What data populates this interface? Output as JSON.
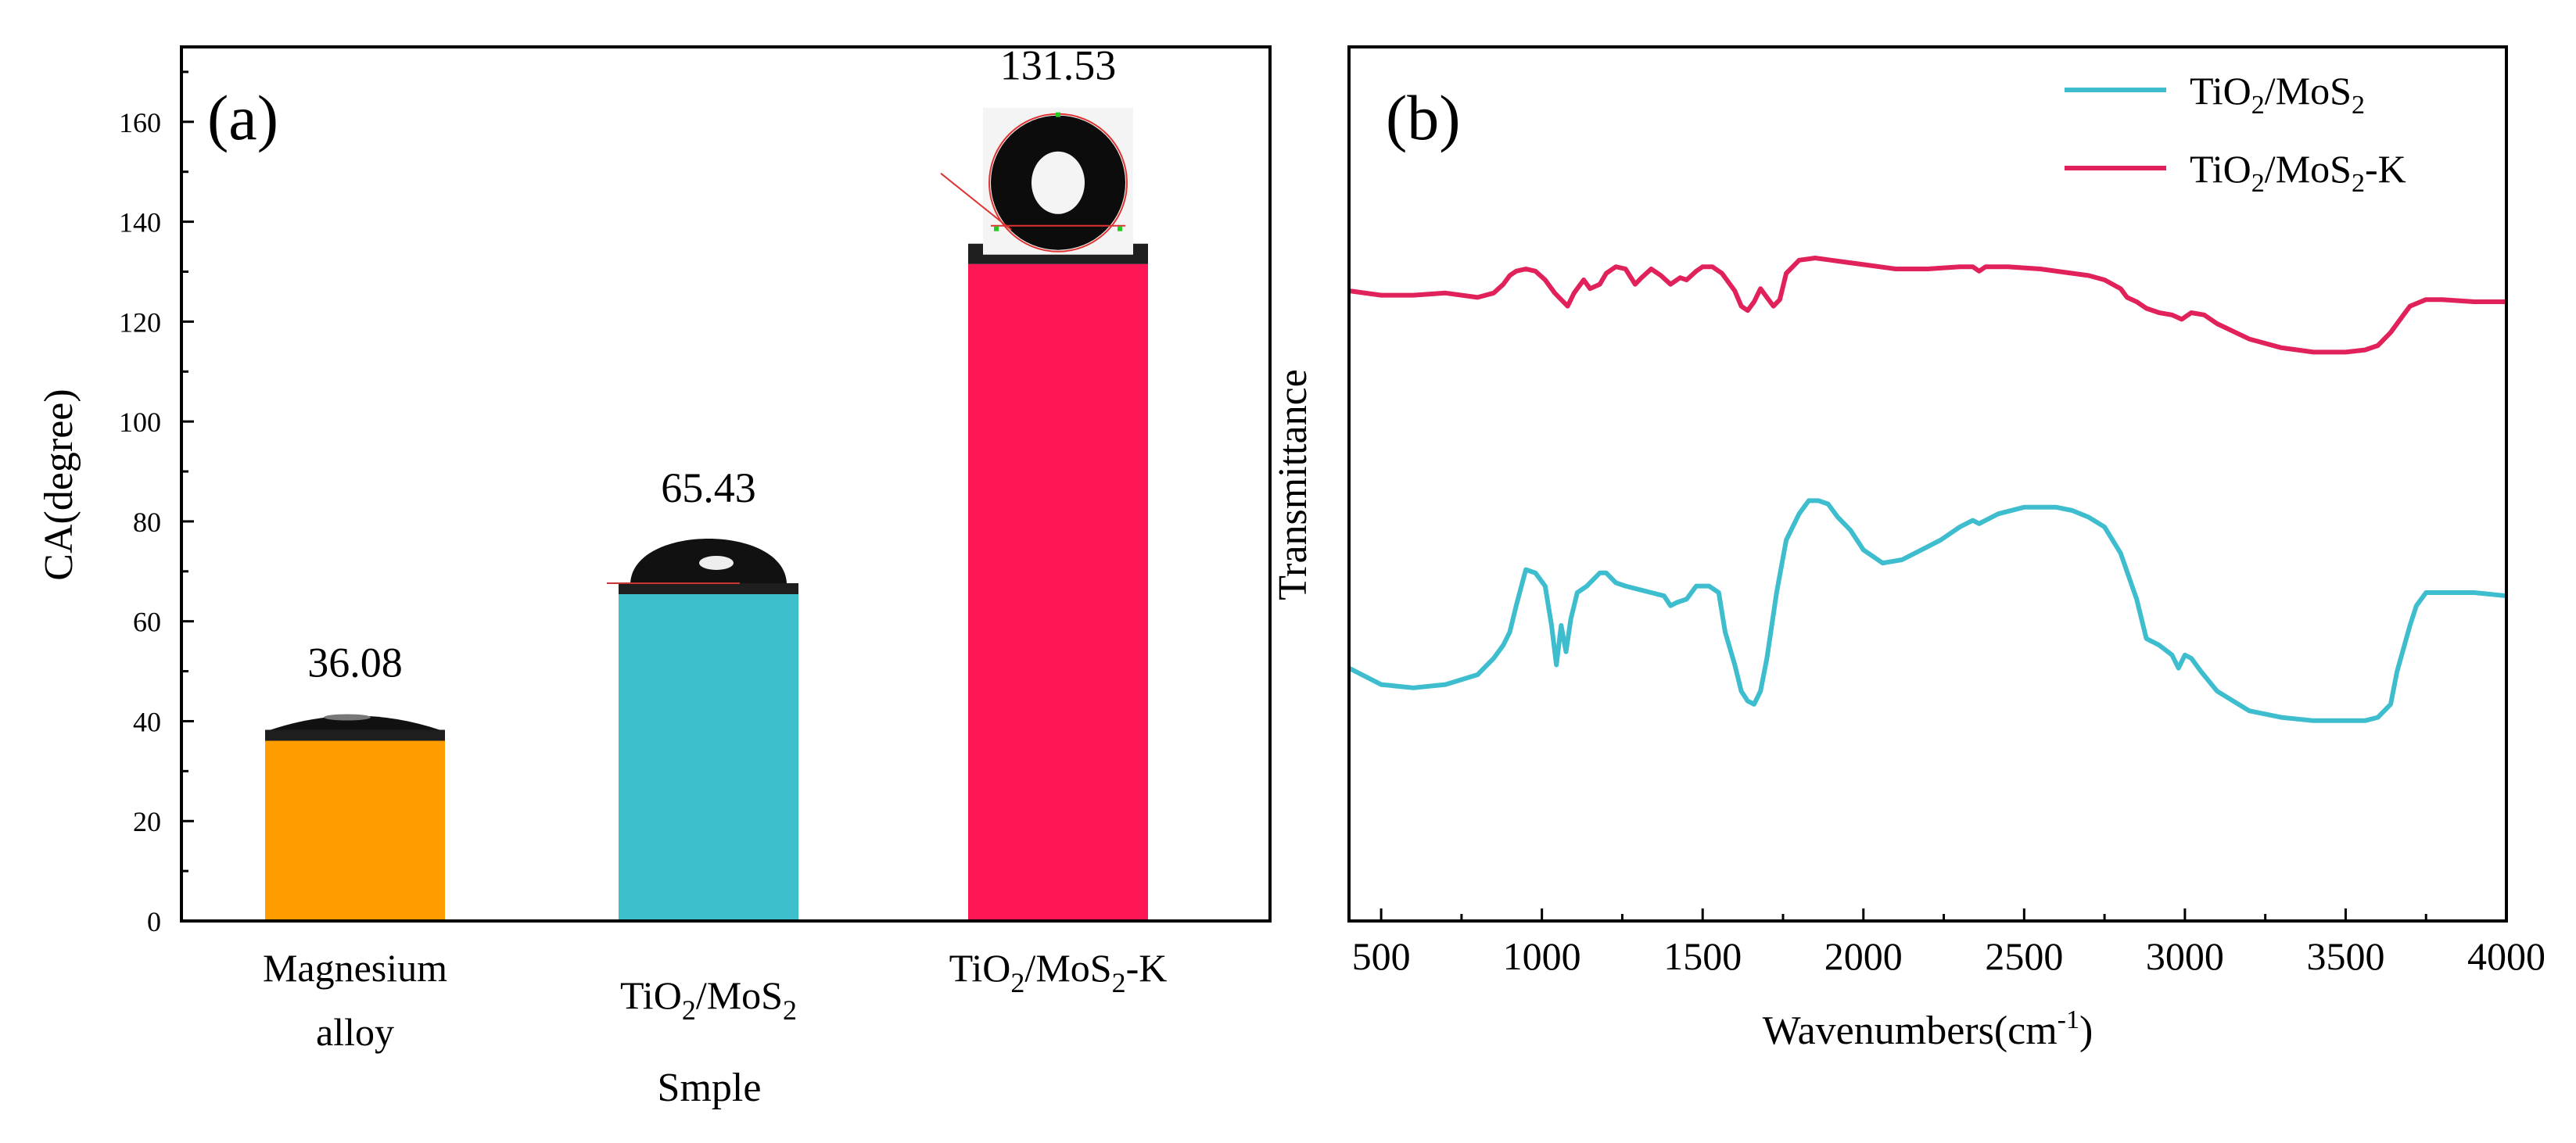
{
  "chart_data": [
    {
      "type": "bar",
      "panel_label": "(a)",
      "title": "",
      "xlabel": "Smple",
      "ylabel": "CA(degree)",
      "ylim": [
        0,
        175
      ],
      "yticks": [
        0,
        20,
        40,
        60,
        80,
        100,
        120,
        140,
        160
      ],
      "categories": [
        {
          "line1": "Magnesium",
          "line2": "alloy",
          "main": "",
          "sub": "",
          "tail": "",
          "color": "#ff9c00"
        },
        {
          "line1": "",
          "line2": "",
          "main": "TiO",
          "sub": "2",
          "tail": "/MoS",
          "sub2": "2",
          "tail2": "",
          "color": "#3ec0cc"
        },
        {
          "line1": "",
          "line2": "",
          "main": "TiO",
          "sub": "2",
          "tail": "/MoS",
          "sub2": "2",
          "tail2": "-K",
          "color": "#ff1654"
        }
      ],
      "values": [
        36.08,
        65.43,
        131.53
      ],
      "value_labels": [
        "36.08",
        "65.43",
        "131.53"
      ]
    },
    {
      "type": "line",
      "panel_label": "(b)",
      "title": "",
      "xlabel": "Wavenumbers(cm",
      "xlabel_sup": "-1",
      "xlabel_close": ")",
      "ylabel": "Transmittance",
      "xlim": [
        400,
        4000
      ],
      "xticks": [
        500,
        1000,
        1500,
        2000,
        2500,
        3000,
        3500,
        4000
      ],
      "ylim": [
        0,
        100
      ],
      "series": [
        {
          "name": "TiO2/MoS2",
          "legend_main": "TiO",
          "legend_sub": "2",
          "legend_tail": "/MoS",
          "legend_sub2": "2",
          "legend_tail2": "",
          "color": "#3dbdcd",
          "x": [
            400,
            500,
            600,
            700,
            800,
            850,
            880,
            900,
            920,
            950,
            980,
            1010,
            1030,
            1045,
            1060,
            1075,
            1090,
            1110,
            1140,
            1180,
            1200,
            1230,
            1260,
            1300,
            1340,
            1380,
            1400,
            1420,
            1450,
            1480,
            1520,
            1550,
            1570,
            1600,
            1620,
            1640,
            1660,
            1680,
            1700,
            1730,
            1760,
            1800,
            1830,
            1860,
            1890,
            1920,
            1960,
            2000,
            2060,
            2120,
            2180,
            2240,
            2300,
            2340,
            2360,
            2380,
            2420,
            2500,
            2600,
            2650,
            2700,
            2750,
            2800,
            2850,
            2880,
            2920,
            2960,
            2980,
            3000,
            3020,
            3050,
            3100,
            3200,
            3300,
            3400,
            3500,
            3560,
            3600,
            3640,
            3660,
            3700,
            3720,
            3750,
            3800,
            3850,
            3900,
            4000
          ],
          "y": [
            37,
            32,
            31,
            32,
            35,
            40,
            44,
            48,
            56,
            67,
            66,
            62,
            50,
            38,
            50,
            42,
            52,
            60,
            62,
            66,
            66,
            63,
            62,
            61,
            60,
            59,
            56,
            57,
            58,
            62,
            62,
            60,
            48,
            38,
            30,
            27,
            26,
            30,
            40,
            60,
            76,
            84,
            88,
            88,
            87,
            83,
            79,
            73,
            69,
            70,
            73,
            76,
            80,
            82,
            81,
            82,
            84,
            86,
            86,
            85,
            83,
            80,
            72,
            58,
            46,
            44,
            41,
            37,
            41,
            40,
            36,
            30,
            24,
            22,
            21,
            21,
            21,
            22,
            26,
            36,
            50,
            56,
            60,
            60,
            60,
            60,
            59
          ]
        },
        {
          "name": "TiO2/MoS2-K",
          "legend_main": "TiO",
          "legend_sub": "2",
          "legend_tail": "/MoS",
          "legend_sub2": "2",
          "legend_tail2": "-K",
          "color": "#e0215a",
          "x": [
            400,
            500,
            600,
            700,
            800,
            850,
            880,
            900,
            920,
            950,
            980,
            1010,
            1040,
            1060,
            1080,
            1100,
            1130,
            1150,
            1180,
            1200,
            1230,
            1260,
            1290,
            1310,
            1340,
            1370,
            1400,
            1430,
            1450,
            1480,
            1500,
            1530,
            1560,
            1600,
            1620,
            1640,
            1660,
            1680,
            1700,
            1720,
            1740,
            1760,
            1800,
            1850,
            1900,
            1950,
            2000,
            2100,
            2200,
            2300,
            2340,
            2360,
            2380,
            2450,
            2550,
            2650,
            2700,
            2750,
            2800,
            2820,
            2850,
            2880,
            2920,
            2960,
            2990,
            3020,
            3060,
            3100,
            3200,
            3300,
            3400,
            3500,
            3560,
            3600,
            3640,
            3680,
            3700,
            3750,
            3800,
            3900,
            4000
          ],
          "y": [
            85,
            83,
            83,
            84,
            82,
            84,
            88,
            92,
            94,
            95,
            94,
            90,
            84,
            81,
            78,
            84,
            90,
            86,
            88,
            93,
            96,
            95,
            88,
            91,
            95,
            92,
            88,
            91,
            90,
            94,
            96,
            96,
            93,
            85,
            78,
            76,
            80,
            86,
            82,
            78,
            81,
            93,
            99,
            100,
            99,
            98,
            97,
            95,
            95,
            96,
            96,
            94,
            96,
            96,
            95,
            93,
            92,
            90,
            86,
            82,
            80,
            77,
            75,
            74,
            72,
            75,
            74,
            70,
            63,
            59,
            57,
            57,
            58,
            60,
            66,
            74,
            78,
            81,
            81,
            80,
            80
          ]
        }
      ]
    }
  ]
}
